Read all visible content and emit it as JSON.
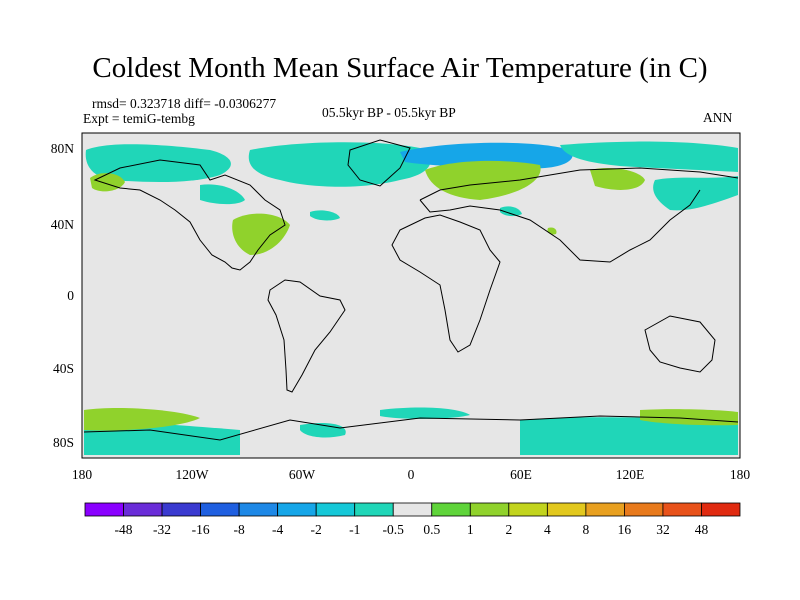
{
  "title": "Coldest Month Mean Surface Air Temperature (in C)",
  "stats": {
    "line1": "rmsd= 0.323718  diff= -0.0306277",
    "line2": "Expt = temiG-tembg"
  },
  "center_label": "05.5kyr BP - 05.5kyr BP",
  "right_label": "ANN",
  "axes": {
    "lat_ticks": [
      "80N",
      "40N",
      "0",
      "40S",
      "80S"
    ],
    "lon_ticks": [
      "180",
      "120W",
      "60W",
      "0",
      "60E",
      "120E",
      "180"
    ]
  },
  "colorbar": {
    "labels": [
      "-48",
      "-32",
      "-16",
      "-8",
      "-4",
      "-2",
      "-1",
      "-0.5",
      "0.5",
      "1",
      "2",
      "4",
      "8",
      "16",
      "32",
      "48"
    ],
    "colors": [
      "#8a00ff",
      "#6a2cd8",
      "#3a3ad0",
      "#1f5fe0",
      "#1e88e6",
      "#16a6e8",
      "#15c8d8",
      "#20d6b8",
      "#e6e6e6",
      "#5fd43a",
      "#90d22c",
      "#c2d41e",
      "#e2c81e",
      "#e8a020",
      "#e87a1c",
      "#e8521a",
      "#e02a10"
    ]
  },
  "colors": {
    "background": "#e6e6e6",
    "cyan": "#20d6b8",
    "cyan_dark": "#16a6e8",
    "green": "#90d22c",
    "green_dark": "#5fd43a"
  }
}
